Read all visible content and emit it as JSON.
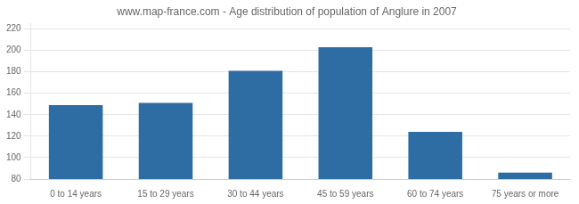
{
  "chart_data": {
    "type": "bar",
    "title": "www.map-france.com - Age distribution of population of Anglure in 2007",
    "categories": [
      "0 to 14 years",
      "15 to 29 years",
      "30 to 44 years",
      "45 to 59 years",
      "60 to 74 years",
      "75 years or more"
    ],
    "values": [
      149,
      151,
      181,
      203,
      124,
      86
    ],
    "color": "#2e6da4",
    "ylim": [
      80,
      225
    ],
    "yticks": [
      80,
      100,
      120,
      140,
      160,
      180,
      200,
      220
    ],
    "grid": true
  }
}
